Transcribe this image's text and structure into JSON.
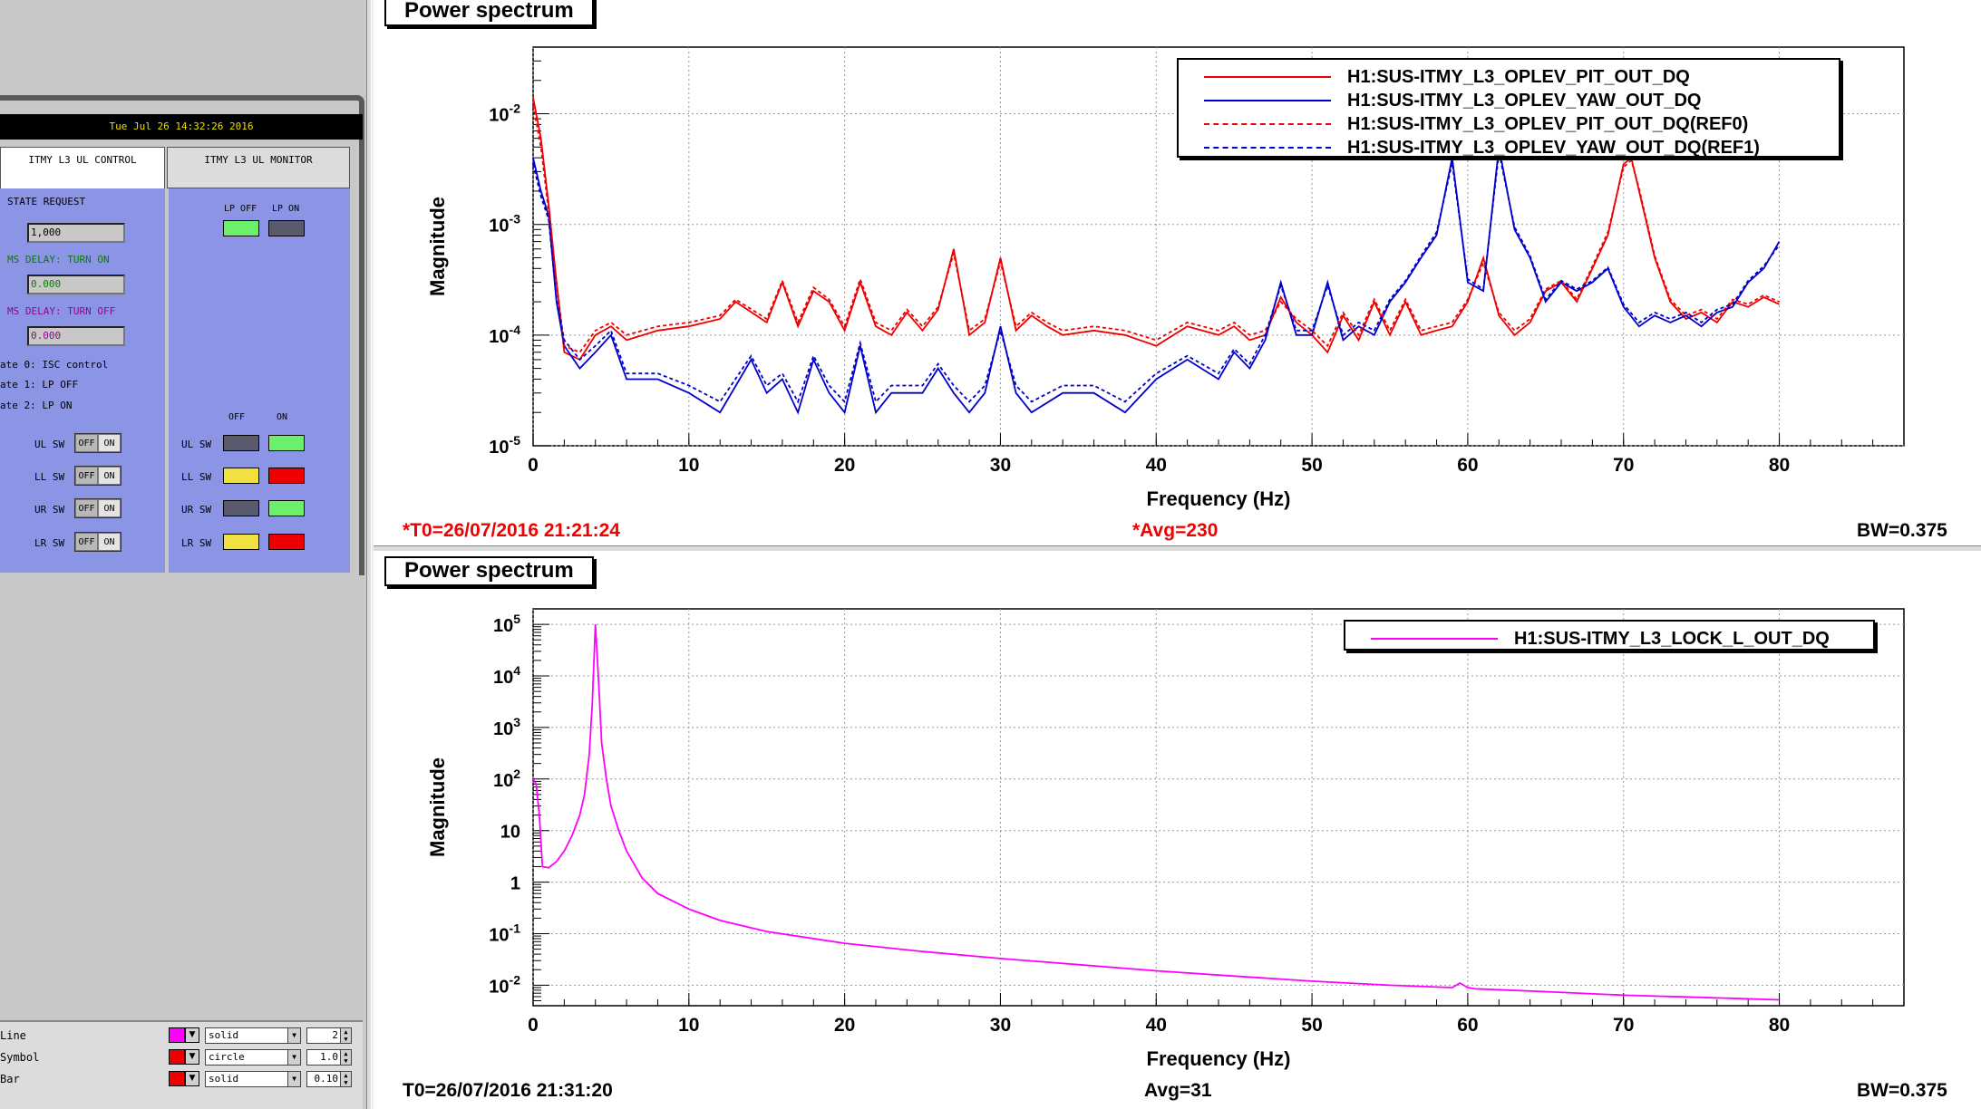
{
  "medm": {
    "timestamp": "Tue Jul 26 14:32:26 2016",
    "tabs": [
      {
        "label": "ITMY L3 UL CONTROL",
        "active": true
      },
      {
        "label": "ITMY L3 UL MONITOR",
        "active": false
      }
    ],
    "control": {
      "state_request_label": "STATE REQUEST",
      "state_request_value": "1,000",
      "turn_on_label": "MS DELAY: TURN ON",
      "turn_on_value": "0.000",
      "turn_off_label": "MS DELAY: TURN OFF",
      "turn_off_value": "0.000",
      "states": [
        "ate 0: ISC control",
        "ate 1: LP OFF",
        "ate 2: LP ON"
      ],
      "switches": [
        {
          "label": "UL SW",
          "off": "OFF",
          "on": "ON"
        },
        {
          "label": "LL SW",
          "off": "OFF",
          "on": "ON"
        },
        {
          "label": "UR SW",
          "off": "OFF",
          "on": "ON"
        },
        {
          "label": "LR SW",
          "off": "OFF",
          "on": "ON"
        }
      ]
    },
    "monitor": {
      "lp_off_label": "LP OFF",
      "lp_on_label": "LP ON",
      "lp_off_color": "#6cf06c",
      "lp_on_color": "#5a5a6e",
      "off_header": "OFF",
      "on_header": "ON",
      "rows": [
        {
          "label": "UL SW",
          "off_color": "#5a5a6e",
          "on_color": "#6cf06c"
        },
        {
          "label": "LL SW",
          "off_color": "#f0e040",
          "on_color": "#ee0000"
        },
        {
          "label": "UR SW",
          "off_color": "#5a5a6e",
          "on_color": "#6cf06c"
        },
        {
          "label": "LR SW",
          "off_color": "#f0e040",
          "on_color": "#ee0000"
        }
      ]
    }
  },
  "attributes": [
    {
      "label": "Line",
      "color": "#ff00ff",
      "style": "solid",
      "value": "2"
    },
    {
      "label": "Symbol",
      "color": "#ee0000",
      "style": "circle",
      "value": "1.0"
    },
    {
      "label": "Bar",
      "color": "#ee0000",
      "style": "solid",
      "value": "0.10"
    }
  ],
  "pads": {
    "top": {
      "title": "Power spectrum",
      "xlabel": "Frequency (Hz)",
      "ylabel": "Magnitude",
      "t0": "*T0=26/07/2016 21:21:24",
      "avg": "*Avg=230",
      "bw": "BW=0.375",
      "status_color": "#ee0000"
    },
    "bottom": {
      "title": "Power spectrum",
      "xlabel": "Frequency (Hz)",
      "ylabel": "Magnitude",
      "t0": "T0=26/07/2016 21:31:20",
      "avg": "Avg=31",
      "bw": "BW=0.375",
      "status_color": "#000000"
    }
  },
  "chart_data": [
    {
      "type": "line",
      "title": "Power spectrum",
      "xlabel": "Frequency (Hz)",
      "ylabel": "Magnitude",
      "xlim": [
        0,
        88
      ],
      "ylim": [
        1e-05,
        0.04
      ],
      "yscale": "log",
      "grid": true,
      "legend": "top-right",
      "xticks": [
        0,
        10,
        20,
        30,
        40,
        50,
        60,
        70,
        80
      ],
      "yticks": [
        {
          "v": 1e-05,
          "m": "10",
          "e": "-5"
        },
        {
          "v": 0.0001,
          "m": "10",
          "e": "-4"
        },
        {
          "v": 0.001,
          "m": "10",
          "e": "-3"
        },
        {
          "v": 0.01,
          "m": "10",
          "e": "-2"
        }
      ],
      "series": [
        {
          "name": "H1:SUS-ITMY_L3_OPLEV_PIT_OUT_DQ",
          "color": "#ee0000",
          "dash": "solid",
          "x": [
            0,
            0.5,
            1,
            1.5,
            2,
            3,
            4,
            5,
            6,
            8,
            10,
            12,
            13,
            15,
            16,
            17,
            18,
            19,
            20,
            21,
            22,
            23,
            24,
            25,
            26,
            27,
            28,
            29,
            30,
            31,
            32,
            33,
            34,
            36,
            38,
            40,
            42,
            44,
            45,
            46,
            47,
            48,
            49,
            50,
            51,
            52,
            53,
            54,
            55,
            56,
            57,
            58,
            59,
            60,
            61,
            62,
            63,
            64,
            65,
            66,
            67,
            68,
            69,
            70,
            70.5,
            71,
            72,
            73,
            74,
            75,
            76,
            77,
            78,
            79,
            80
          ],
          "y": [
            0.014,
            0.006,
            0.0015,
            0.0003,
            7e-05,
            6e-05,
            0.0001,
            0.00012,
            9e-05,
            0.00011,
            0.00012,
            0.00014,
            0.0002,
            0.00013,
            0.0003,
            0.00012,
            0.00025,
            0.0002,
            0.00011,
            0.0003,
            0.00012,
            0.0001,
            0.00016,
            0.00011,
            0.00017,
            0.0006,
            0.0001,
            0.00013,
            0.0005,
            0.00011,
            0.00015,
            0.00012,
            0.0001,
            0.00011,
            0.0001,
            8e-05,
            0.00012,
            0.0001,
            0.00012,
            9e-05,
            0.0001,
            0.00022,
            0.00013,
            0.0001,
            7e-05,
            0.00015,
            9e-05,
            0.0002,
            0.0001,
            0.0002,
            0.0001,
            0.00011,
            0.00012,
            0.0002,
            0.0005,
            0.00015,
            0.0001,
            0.00013,
            0.00025,
            0.0003,
            0.0002,
            0.0004,
            0.0008,
            0.0035,
            0.004,
            0.002,
            0.0005,
            0.0002,
            0.00014,
            0.00016,
            0.00013,
            0.0002,
            0.00018,
            0.00022,
            0.00019
          ]
        },
        {
          "name": "H1:SUS-ITMY_L3_OPLEV_YAW_OUT_DQ",
          "color": "#0000cc",
          "dash": "solid",
          "x": [
            0,
            0.5,
            1,
            1.5,
            2,
            3,
            4,
            5,
            6,
            7,
            8,
            10,
            12,
            14,
            15,
            16,
            17,
            18,
            19,
            20,
            21,
            22,
            23,
            24,
            25,
            26,
            27,
            28,
            29,
            30,
            31,
            32,
            34,
            36,
            38,
            40,
            42,
            44,
            45,
            46,
            47,
            48,
            49,
            50,
            51,
            52,
            53,
            54,
            55,
            56,
            57,
            58,
            59,
            60,
            61,
            62,
            63,
            64,
            65,
            66,
            67,
            68,
            69,
            70,
            71,
            72,
            73,
            74,
            75,
            76,
            77,
            78,
            79,
            80
          ],
          "y": [
            0.004,
            0.002,
            0.0012,
            0.0002,
            8e-05,
            5e-05,
            7e-05,
            0.0001,
            4e-05,
            4e-05,
            4e-05,
            3e-05,
            2e-05,
            6e-05,
            3e-05,
            4e-05,
            2e-05,
            6e-05,
            3e-05,
            2e-05,
            8e-05,
            2e-05,
            3e-05,
            3e-05,
            3e-05,
            5e-05,
            3e-05,
            2e-05,
            3e-05,
            0.00012,
            3e-05,
            2e-05,
            3e-05,
            3e-05,
            2e-05,
            4e-05,
            6e-05,
            4e-05,
            7e-05,
            5e-05,
            9e-05,
            0.0003,
            0.0001,
            0.0001,
            0.0003,
            9e-05,
            0.00012,
            0.0001,
            0.0002,
            0.0003,
            0.0005,
            0.0008,
            0.004,
            0.0003,
            0.00025,
            0.005,
            0.0009,
            0.0005,
            0.0002,
            0.0003,
            0.00025,
            0.0003,
            0.0004,
            0.00018,
            0.00012,
            0.00015,
            0.00013,
            0.00015,
            0.00012,
            0.00016,
            0.00018,
            0.0003,
            0.0004,
            0.0007
          ]
        },
        {
          "name": "H1:SUS-ITMY_L3_OPLEV_PIT_OUT_DQ(REF0)",
          "color": "#ee0000",
          "dash": "dashed",
          "x": [
            0,
            0.5,
            1,
            1.5,
            2,
            3,
            4,
            5,
            6,
            8,
            10,
            12,
            13,
            15,
            16,
            17,
            18,
            19,
            20,
            21,
            22,
            23,
            24,
            25,
            26,
            27,
            28,
            29,
            30,
            31,
            32,
            33,
            34,
            36,
            38,
            40,
            42,
            44,
            45,
            46,
            47,
            48,
            49,
            50,
            51,
            52,
            53,
            54,
            55,
            56,
            57,
            58,
            59,
            60,
            61,
            62,
            63,
            64,
            65,
            66,
            67,
            68,
            69,
            70,
            70.5,
            71,
            72,
            73,
            74,
            75,
            76,
            77,
            78,
            79,
            80
          ],
          "y": [
            0.012,
            0.005,
            0.0013,
            0.0003,
            8e-05,
            7e-05,
            0.00011,
            0.00013,
            0.0001,
            0.00012,
            0.00013,
            0.00015,
            0.00021,
            0.00014,
            0.00031,
            0.00013,
            0.00027,
            0.00021,
            0.00012,
            0.00032,
            0.00013,
            0.00011,
            0.00017,
            0.00012,
            0.00018,
            0.00055,
            0.00011,
            0.00014,
            0.00046,
            0.00012,
            0.00016,
            0.00013,
            0.00011,
            0.00012,
            0.00011,
            9e-05,
            0.00013,
            0.00011,
            0.00013,
            0.0001,
            0.00011,
            0.0002,
            0.00014,
            0.00011,
            8e-05,
            0.00016,
            0.0001,
            0.00021,
            0.00011,
            0.00021,
            0.00011,
            0.00012,
            0.00013,
            0.00021,
            0.00045,
            0.00016,
            0.00011,
            0.00014,
            0.00026,
            0.00031,
            0.00021,
            0.00042,
            0.00085,
            0.0033,
            0.0038,
            0.0021,
            0.00052,
            0.00021,
            0.00015,
            0.00017,
            0.00014,
            0.00021,
            0.00019,
            0.00023,
            0.0002
          ]
        },
        {
          "name": "H1:SUS-ITMY_L3_OPLEV_YAW_OUT_DQ(REF1)",
          "color": "#0000cc",
          "dash": "dashed",
          "x": [
            0,
            0.5,
            1,
            1.5,
            2,
            3,
            4,
            5,
            6,
            7,
            8,
            10,
            12,
            14,
            15,
            16,
            17,
            18,
            19,
            20,
            21,
            22,
            23,
            24,
            25,
            26,
            27,
            28,
            29,
            30,
            31,
            32,
            34,
            36,
            38,
            40,
            42,
            44,
            45,
            46,
            47,
            48,
            49,
            50,
            51,
            52,
            53,
            54,
            55,
            56,
            57,
            58,
            59,
            60,
            61,
            62,
            63,
            64,
            65,
            66,
            67,
            68,
            69,
            70,
            71,
            72,
            73,
            74,
            75,
            76,
            77,
            78,
            79,
            80
          ],
          "y": [
            0.0035,
            0.0018,
            0.0011,
            0.00021,
            9e-05,
            6e-05,
            8e-05,
            0.00011,
            4.5e-05,
            4.5e-05,
            4.5e-05,
            3.5e-05,
            2.5e-05,
            6.5e-05,
            3.5e-05,
            4.5e-05,
            2.5e-05,
            6.5e-05,
            3.5e-05,
            2.5e-05,
            8.5e-05,
            2.5e-05,
            3.5e-05,
            3.5e-05,
            3.5e-05,
            5.5e-05,
            3.5e-05,
            2.5e-05,
            3.5e-05,
            0.00011,
            3.5e-05,
            2.5e-05,
            3.5e-05,
            3.5e-05,
            2.5e-05,
            4.5e-05,
            6.5e-05,
            4.5e-05,
            7.5e-05,
            5.5e-05,
            0.0001,
            0.00028,
            0.00011,
            0.00011,
            0.00028,
            0.0001,
            0.00013,
            0.00011,
            0.00021,
            0.00031,
            0.00052,
            0.00085,
            0.0036,
            0.00032,
            0.00026,
            0.0045,
            0.00095,
            0.00052,
            0.00021,
            0.00031,
            0.00026,
            0.00031,
            0.00041,
            0.00019,
            0.00013,
            0.00016,
            0.00014,
            0.00016,
            0.00013,
            0.00017,
            0.00019,
            0.00031,
            0.00042,
            0.00065
          ]
        }
      ]
    },
    {
      "type": "line",
      "title": "Power spectrum",
      "xlabel": "Frequency (Hz)",
      "ylabel": "Magnitude",
      "xlim": [
        0,
        88
      ],
      "ylim": [
        0.004,
        200000
      ],
      "yscale": "log",
      "grid": true,
      "legend": "top-right",
      "xticks": [
        0,
        10,
        20,
        30,
        40,
        50,
        60,
        70,
        80
      ],
      "yticks": [
        {
          "v": 0.01,
          "m": "10",
          "e": "-2"
        },
        {
          "v": 0.1,
          "m": "10",
          "e": "-1"
        },
        {
          "v": 1,
          "m": "1",
          "e": ""
        },
        {
          "v": 10,
          "m": "10",
          "e": ""
        },
        {
          "v": 100,
          "m": "10",
          "e": "2"
        },
        {
          "v": 1000,
          "m": "10",
          "e": "3"
        },
        {
          "v": 10000,
          "m": "10",
          "e": "4"
        },
        {
          "v": 100000,
          "m": "10",
          "e": "5"
        }
      ],
      "series": [
        {
          "name": "H1:SUS-ITMY_L3_LOCK_L_OUT_DQ",
          "color": "#ff00ff",
          "dash": "solid",
          "x": [
            0,
            0.2,
            0.4,
            0.6,
            1,
            1.5,
            2,
            2.5,
            3,
            3.3,
            3.6,
            3.8,
            4,
            4.2,
            4.4,
            4.7,
            5,
            5.5,
            6,
            7,
            8,
            10,
            12,
            15,
            20,
            25,
            30,
            35,
            40,
            45,
            50,
            55,
            59,
            59.5,
            60,
            60.5,
            61,
            65,
            70,
            75,
            80
          ],
          "y": [
            100,
            80,
            20,
            2,
            1.9,
            2.5,
            4,
            8,
            20,
            50,
            300,
            3000,
            100000,
            8000,
            500,
            100,
            30,
            10,
            4,
            1.2,
            0.6,
            0.3,
            0.18,
            0.11,
            0.065,
            0.045,
            0.033,
            0.025,
            0.019,
            0.015,
            0.012,
            0.01,
            0.009,
            0.011,
            0.009,
            0.0085,
            0.0084,
            0.0075,
            0.0064,
            0.0058,
            0.0052
          ]
        }
      ]
    }
  ]
}
